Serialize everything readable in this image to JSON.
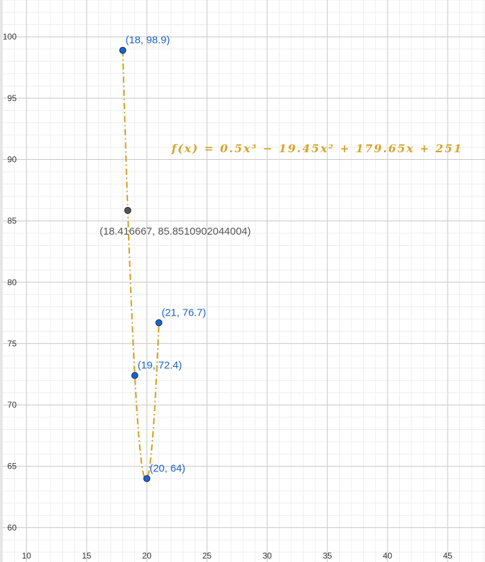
{
  "colors": {
    "curve": "#d4a52a",
    "point_fill": "#1d63c7",
    "point_label": "#1d63c7",
    "special_point_fill": "#555555",
    "special_label": "#555555",
    "grid_major": "#c8c8c8",
    "grid_minor": "#eeeeee",
    "axis_text": "#333333",
    "left_edge": "#e6e6e6"
  },
  "chart_data": {
    "type": "line",
    "function_label": "f(x) = 0.5x³ − 19.45x² + 179.65x + 251",
    "function_coefficients": [
      0.5,
      -19.45,
      179.65,
      251
    ],
    "curve_domain": [
      18,
      21
    ],
    "curve_style": "dash-dot",
    "xlim": [
      7.8,
      48.1
    ],
    "ylim": [
      57.2,
      103.0
    ],
    "x_ticks": [
      10,
      15,
      20,
      25,
      30,
      35,
      40,
      45
    ],
    "y_ticks": [
      60,
      65,
      70,
      75,
      80,
      85,
      90,
      95,
      100
    ],
    "x_tick_labels": [
      "10",
      "15",
      "20",
      "25",
      "30",
      "35",
      "40",
      "45"
    ],
    "y_tick_labels": [
      "60",
      "65",
      "70",
      "75",
      "80",
      "85",
      "90",
      "95",
      "100"
    ],
    "minor_step": 1,
    "grid": true,
    "points": [
      {
        "x": 18,
        "y": 98.9,
        "label": "(18, 98.9)"
      },
      {
        "x": 19,
        "y": 72.4,
        "label": "(19, 72.4)"
      },
      {
        "x": 20,
        "y": 64,
        "label": "(20, 64)"
      },
      {
        "x": 21,
        "y": 76.7,
        "label": "(21, 76.7)"
      }
    ],
    "special_point": {
      "x": 18.416667,
      "y": 85.8510902044004,
      "label": "(18.416667, 85.8510902044004)"
    }
  }
}
